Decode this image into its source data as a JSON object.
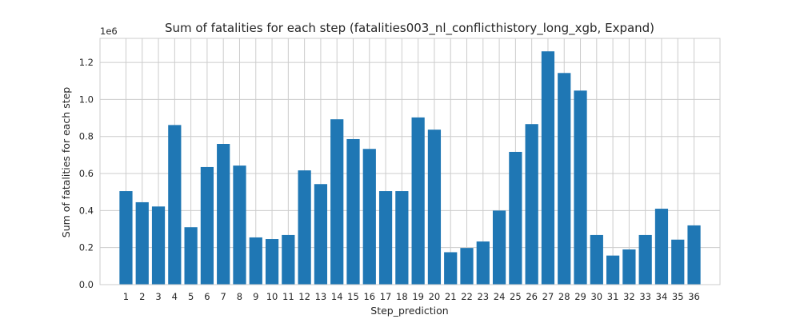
{
  "chart_data": {
    "type": "bar",
    "title": "Sum of fatalities for each step (fatalities003_nl_conflicthistory_long_xgb, Expand)",
    "xlabel": "Step_prediction",
    "ylabel": "Sum of fatalities for each step",
    "y_offset_text": "1e6",
    "categories": [
      "1",
      "2",
      "3",
      "4",
      "5",
      "6",
      "7",
      "8",
      "9",
      "10",
      "11",
      "12",
      "13",
      "14",
      "15",
      "16",
      "17",
      "18",
      "19",
      "20",
      "21",
      "22",
      "23",
      "24",
      "25",
      "26",
      "27",
      "28",
      "29",
      "30",
      "31",
      "32",
      "33",
      "34",
      "35",
      "36"
    ],
    "values": [
      505000,
      445000,
      422000,
      862000,
      310000,
      635000,
      760000,
      643000,
      255000,
      246000,
      268000,
      617000,
      543000,
      893000,
      786000,
      733000,
      505000,
      505000,
      903000,
      837000,
      175000,
      198000,
      233000,
      400000,
      717000,
      867000,
      1260000,
      1143000,
      1048000,
      268000,
      157000,
      190000,
      268000,
      410000,
      243000,
      320000
    ],
    "ylim": [
      0,
      1330000
    ],
    "yticks": [
      0,
      200000,
      400000,
      600000,
      800000,
      1000000,
      1200000
    ],
    "ytick_labels": [
      "0.0",
      "0.2",
      "0.4",
      "0.6",
      "0.8",
      "1.0",
      "1.2"
    ],
    "grid": true,
    "bar_color": "#1f77b4",
    "grid_color": "#cccccc"
  }
}
